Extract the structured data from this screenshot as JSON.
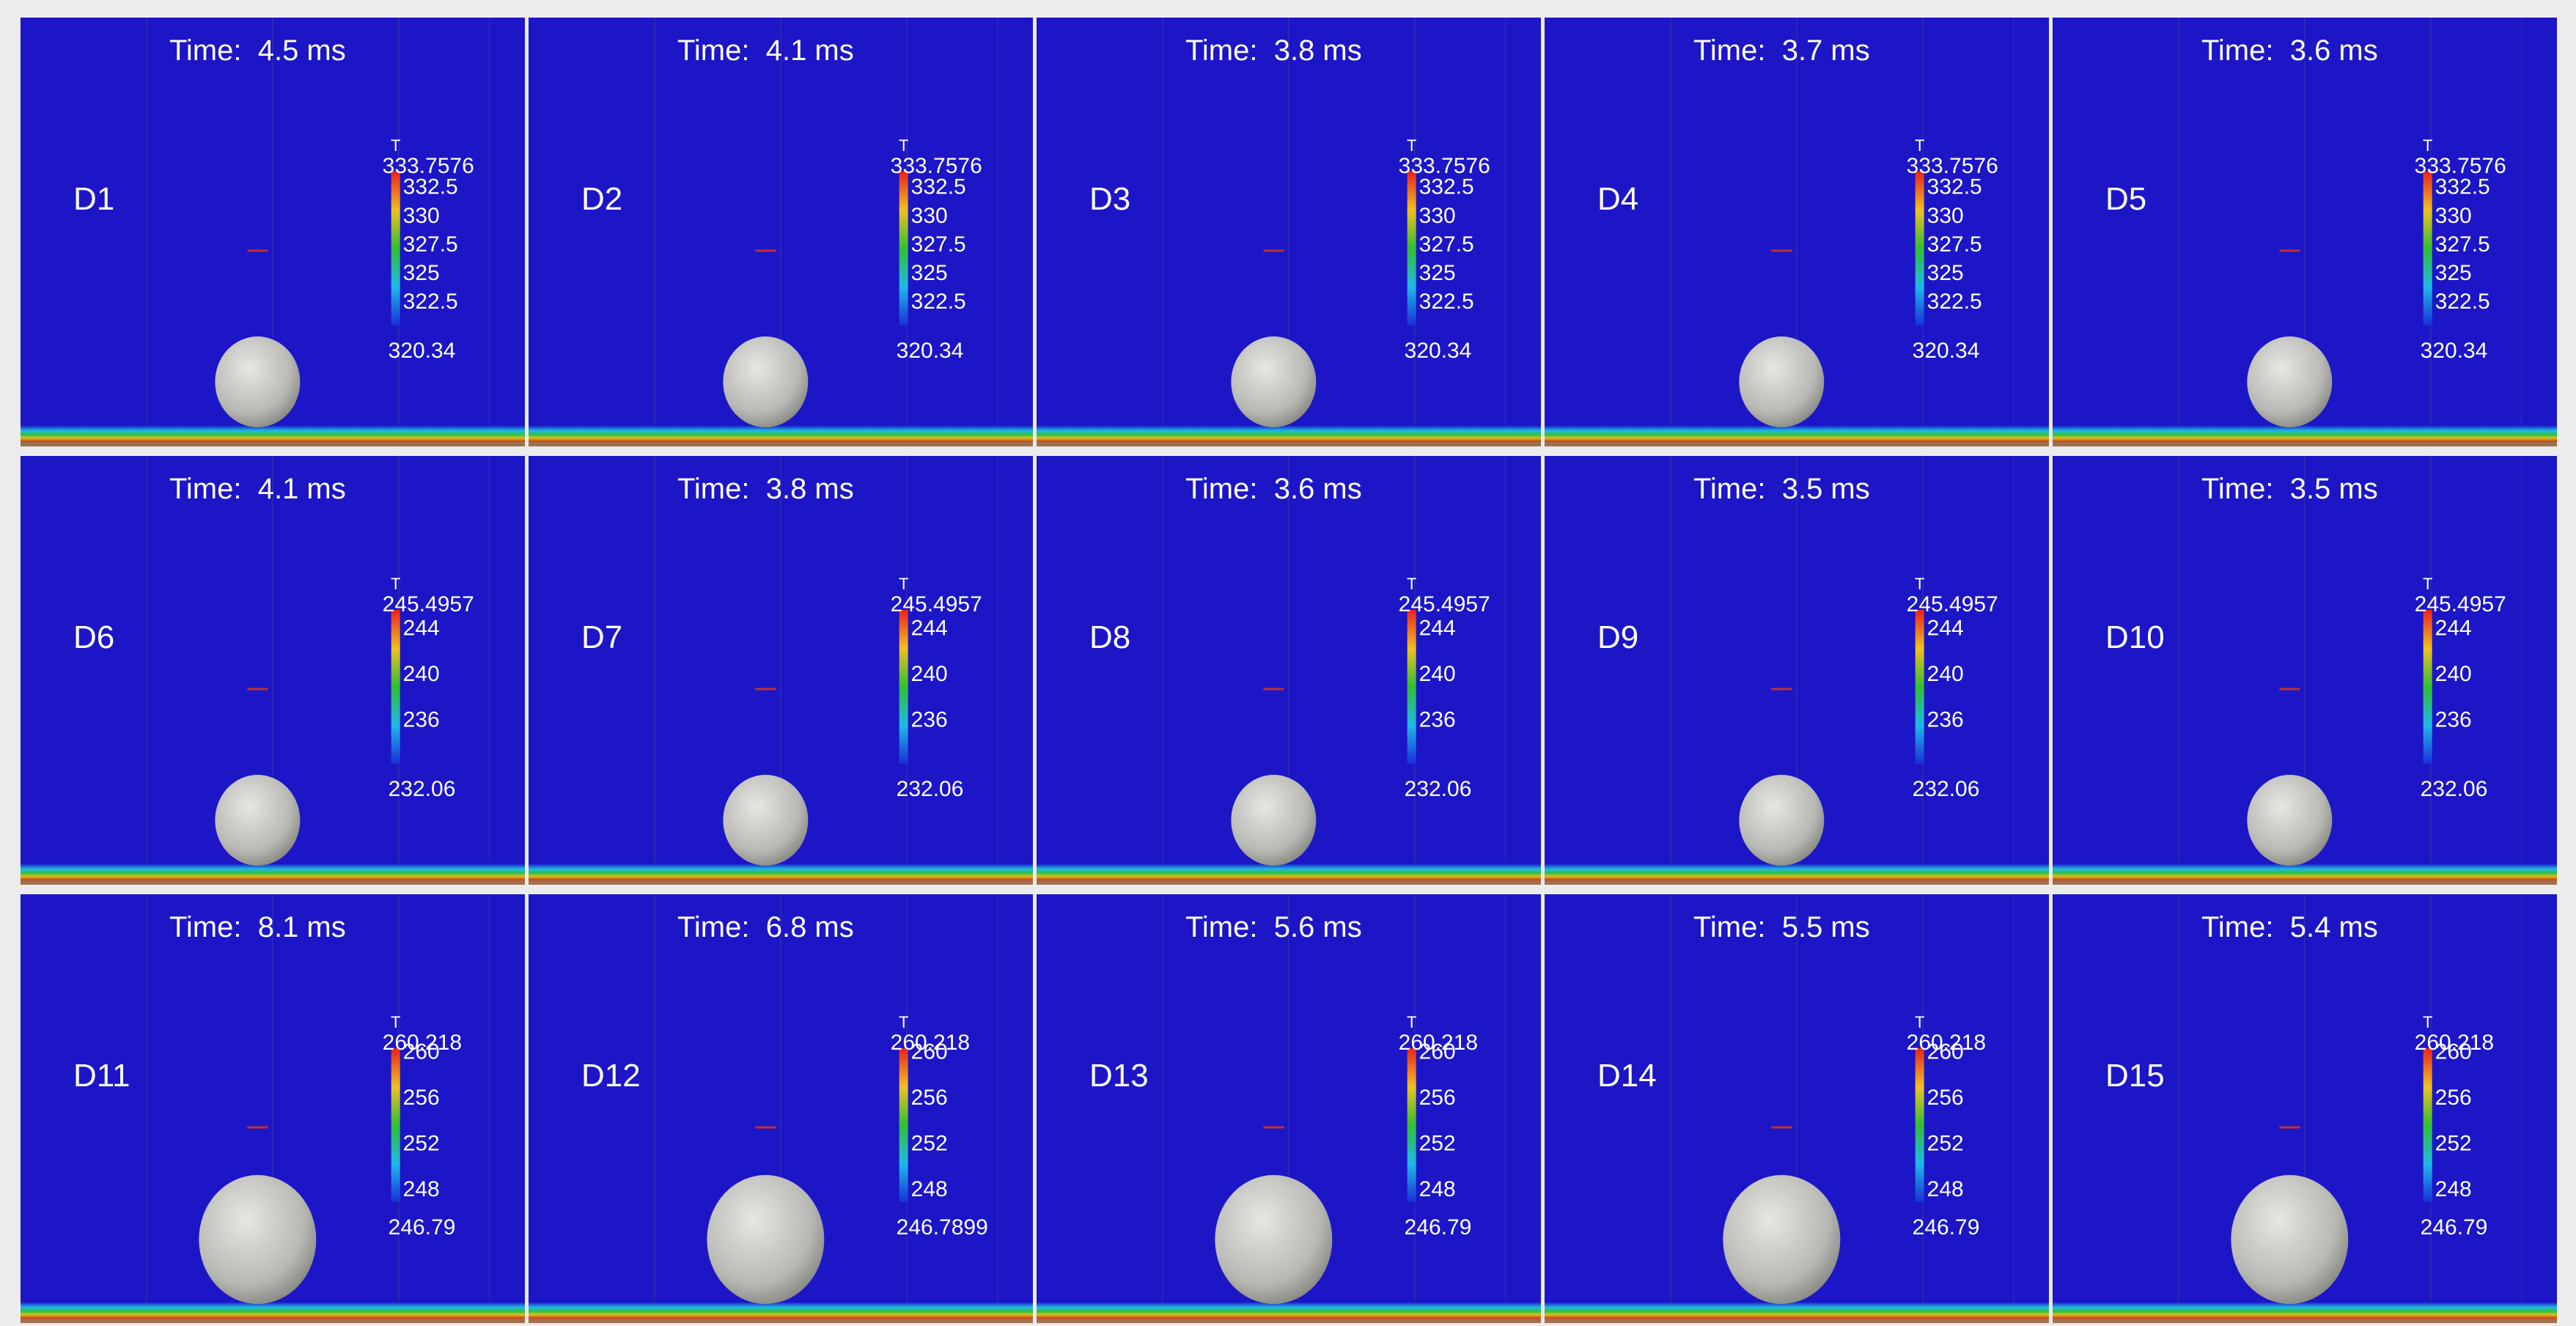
{
  "panels": [
    {
      "label": "D1",
      "time": "Time:  4.5 ms",
      "colorbar": {
        "title": "T",
        "max": 333.7576,
        "ticks": [
          332.5,
          330,
          327.5,
          325,
          322.5
        ],
        "min": 320.34
      }
    },
    {
      "label": "D2",
      "time": "Time:  4.1 ms",
      "colorbar": {
        "title": "T",
        "max": 333.7576,
        "ticks": [
          332.5,
          330,
          327.5,
          325,
          322.5
        ],
        "min": 320.34
      }
    },
    {
      "label": "D3",
      "time": "Time:  3.8 ms",
      "colorbar": {
        "title": "T",
        "max": 333.7576,
        "ticks": [
          332.5,
          330,
          327.5,
          325,
          322.5
        ],
        "min": 320.34
      }
    },
    {
      "label": "D4",
      "time": "Time:  3.7 ms",
      "colorbar": {
        "title": "T",
        "max": 333.7576,
        "ticks": [
          332.5,
          330,
          327.5,
          325,
          322.5
        ],
        "min": 320.34
      }
    },
    {
      "label": "D5",
      "time": "Time:  3.6 ms",
      "colorbar": {
        "title": "T",
        "max": 333.7576,
        "ticks": [
          332.5,
          330,
          327.5,
          325,
          322.5
        ],
        "min": 320.34
      }
    },
    {
      "label": "D6",
      "time": "Time:  4.1 ms",
      "colorbar": {
        "title": "T",
        "max": 245.4957,
        "ticks": [
          244,
          240,
          236
        ],
        "min": 232.06
      }
    },
    {
      "label": "D7",
      "time": "Time:  3.8 ms",
      "colorbar": {
        "title": "T",
        "max": 245.4957,
        "ticks": [
          244,
          240,
          236
        ],
        "min": 232.06
      }
    },
    {
      "label": "D8",
      "time": "Time:  3.6 ms",
      "colorbar": {
        "title": "T",
        "max": 245.4957,
        "ticks": [
          244,
          240,
          236
        ],
        "min": 232.06
      }
    },
    {
      "label": "D9",
      "time": "Time:  3.5 ms",
      "colorbar": {
        "title": "T",
        "max": 245.4957,
        "ticks": [
          244,
          240,
          236
        ],
        "min": 232.06
      }
    },
    {
      "label": "D10",
      "time": "Time:  3.5 ms",
      "colorbar": {
        "title": "T",
        "max": 245.4957,
        "ticks": [
          244,
          240,
          236
        ],
        "min": 232.06
      }
    },
    {
      "label": "D11",
      "time": "Time:  8.1 ms",
      "colorbar": {
        "title": "T",
        "max": 260.218,
        "ticks": [
          260,
          256,
          252,
          248
        ],
        "min": 246.79
      }
    },
    {
      "label": "D12",
      "time": "Time:  6.8 ms",
      "colorbar": {
        "title": "T",
        "max": 260.218,
        "ticks": [
          260,
          256,
          252,
          248
        ],
        "min": 246.7899
      }
    },
    {
      "label": "D13",
      "time": "Time:  5.6 ms",
      "colorbar": {
        "title": "T",
        "max": 260.218,
        "ticks": [
          260,
          256,
          252,
          248
        ],
        "min": 246.79
      }
    },
    {
      "label": "D14",
      "time": "Time:  5.5 ms",
      "colorbar": {
        "title": "T",
        "max": 260.218,
        "ticks": [
          260,
          256,
          252,
          248
        ],
        "min": 246.79
      }
    },
    {
      "label": "D15",
      "time": "Time:  5.4 ms",
      "colorbar": {
        "title": "T",
        "max": 260.218,
        "ticks": [
          260,
          256,
          252,
          248
        ],
        "min": 246.79
      }
    }
  ]
}
